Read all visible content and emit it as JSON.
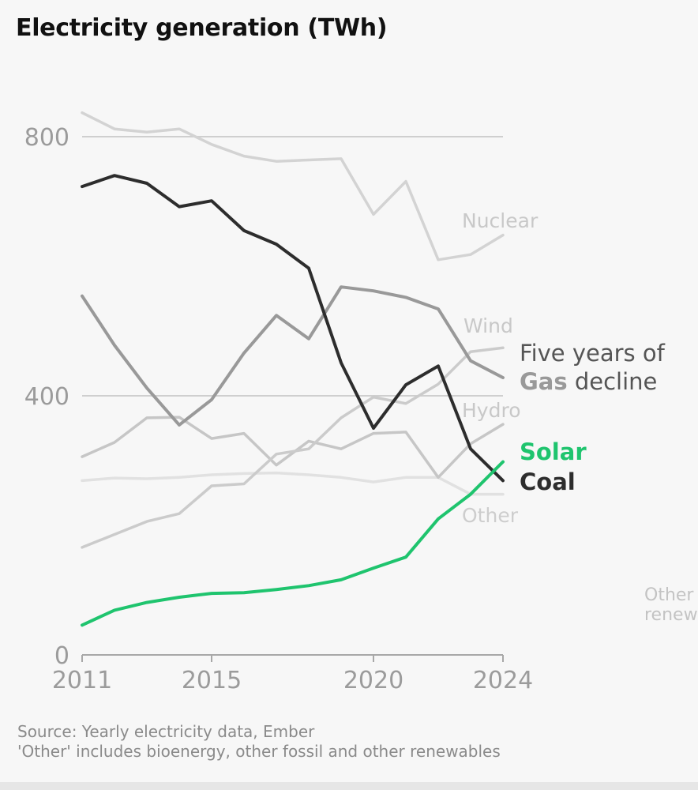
{
  "title": "Electricity generation (TWh)",
  "source_line1": "Source: Yearly electricity data, Ember",
  "source_line2": "'Other' includes bioenergy, other fossil and other renewables",
  "colors": {
    "solar": "#1fc46e",
    "coal": "#2d2d2d",
    "gas": "#999999",
    "nuclear": "#d3d3d3",
    "wind": "#cbcbcb",
    "hydro": "#c6c6c6",
    "other": "#e1e1e1",
    "grid": "#cfcfcf",
    "tick": "#9b9b9b"
  },
  "chart_data": {
    "type": "line",
    "title": "Electricity generation (TWh)",
    "xlabel": "",
    "ylabel": "",
    "xlim": [
      2011,
      2024
    ],
    "ylim": [
      0,
      800
    ],
    "x_ticks": [
      2011,
      2015,
      2020,
      2024
    ],
    "y_ticks": [
      0,
      400,
      800
    ],
    "x": [
      2011,
      2012,
      2013,
      2014,
      2015,
      2016,
      2017,
      2018,
      2019,
      2020,
      2021,
      2022,
      2023,
      2024
    ],
    "series": [
      {
        "key": "nuclear",
        "name": "Nuclear",
        "values": [
          837,
          812,
          807,
          812,
          788,
          770,
          762,
          764,
          766,
          680,
          731,
          610,
          618,
          648
        ]
      },
      {
        "key": "other",
        "name": "Other",
        "values": [
          269,
          273,
          272,
          274,
          278,
          280,
          281,
          278,
          274,
          267,
          274,
          274,
          248,
          248
        ]
      },
      {
        "key": "hydro",
        "name": "Hydro",
        "values": [
          306,
          328,
          366,
          367,
          334,
          342,
          293,
          330,
          318,
          342,
          344,
          274,
          326,
          356
        ]
      },
      {
        "key": "wind",
        "name": "Wind",
        "values": [
          166,
          186,
          206,
          218,
          261,
          264,
          310,
          318,
          366,
          398,
          388,
          418,
          468,
          474
        ]
      },
      {
        "key": "gas",
        "name": "Gas",
        "values": [
          554,
          478,
          412,
          355,
          394,
          466,
          524,
          488,
          568,
          562,
          552,
          534,
          454,
          428
        ]
      },
      {
        "key": "coal",
        "name": "Coal",
        "values": [
          723,
          740,
          728,
          692,
          701,
          655,
          634,
          597,
          451,
          350,
          417,
          446,
          318,
          269
        ]
      },
      {
        "key": "solar",
        "name": "Solar",
        "values": [
          46,
          69,
          81,
          89,
          95,
          96,
          101,
          107,
          116,
          134,
          151,
          210,
          248,
          298
        ]
      }
    ],
    "labels": {
      "nuclear": "Nuclear",
      "wind": "Wind",
      "hydro": "Hydro",
      "other": "Other",
      "solar": "Solar",
      "coal": "Coal",
      "gas_line1": "Five years of",
      "gas_bold": "Gas",
      "gas_line2_rest": " decline",
      "other_renewables_line1": "Other",
      "other_renewables_line2": "renew"
    }
  }
}
